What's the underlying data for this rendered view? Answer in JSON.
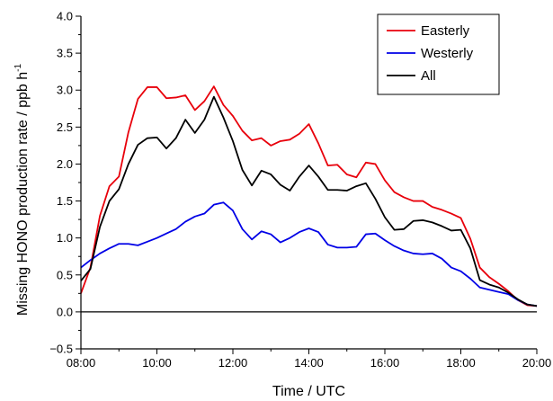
{
  "chart_data": {
    "type": "line",
    "xlabel": "Time / UTC",
    "ylabel": "Missing HONO production rate / ppb h",
    "ylabel_sup": "-1",
    "xlim": [
      "08:00",
      "20:00"
    ],
    "ylim": [
      -0.5,
      4.0
    ],
    "x_ticks": [
      "08:00",
      "10:00",
      "12:00",
      "14:00",
      "16:00",
      "18:00",
      "20:00"
    ],
    "y_ticks": [
      "−0.5",
      "0.0",
      "0.5",
      "1.0",
      "1.5",
      "2.0",
      "2.5",
      "3.0",
      "3.5",
      "4.0"
    ],
    "y_tick_values": [
      -0.5,
      0.0,
      0.5,
      1.0,
      1.5,
      2.0,
      2.5,
      3.0,
      3.5,
      4.0
    ],
    "grid": false,
    "zero_line": true,
    "legend_position": "top-right",
    "x": [
      "08:00",
      "08:15",
      "08:30",
      "08:45",
      "09:00",
      "09:15",
      "09:30",
      "09:45",
      "10:00",
      "10:15",
      "10:30",
      "10:45",
      "11:00",
      "11:15",
      "11:30",
      "11:45",
      "12:00",
      "12:15",
      "12:30",
      "12:45",
      "13:00",
      "13:15",
      "13:30",
      "13:45",
      "14:00",
      "14:15",
      "14:30",
      "14:45",
      "15:00",
      "15:15",
      "15:30",
      "15:45",
      "16:00",
      "16:15",
      "16:30",
      "16:45",
      "17:00",
      "17:15",
      "17:30",
      "17:45",
      "18:00",
      "18:15",
      "18:30",
      "18:45",
      "19:00",
      "19:15",
      "19:30",
      "19:45",
      "20:00"
    ],
    "series": [
      {
        "name": "Easterly",
        "color": "#e8000b",
        "values": [
          0.25,
          0.6,
          1.3,
          1.7,
          1.83,
          2.43,
          2.88,
          3.04,
          3.04,
          2.89,
          2.9,
          2.93,
          2.73,
          2.85,
          3.05,
          2.8,
          2.65,
          2.45,
          2.32,
          2.35,
          2.25,
          2.31,
          2.33,
          2.41,
          2.54,
          2.28,
          1.98,
          1.99,
          1.86,
          1.82,
          2.02,
          2.0,
          1.78,
          1.62,
          1.55,
          1.5,
          1.5,
          1.42,
          1.38,
          1.33,
          1.27,
          0.99,
          0.6,
          0.47,
          0.38,
          0.28,
          0.16,
          0.09,
          0.08
        ]
      },
      {
        "name": "Westerly",
        "color": "#0000e6",
        "values": [
          0.6,
          0.7,
          0.79,
          0.86,
          0.92,
          0.92,
          0.9,
          0.95,
          1.0,
          1.06,
          1.12,
          1.22,
          1.29,
          1.33,
          1.45,
          1.48,
          1.37,
          1.12,
          0.98,
          1.09,
          1.05,
          0.94,
          1.0,
          1.08,
          1.13,
          1.08,
          0.91,
          0.87,
          0.87,
          0.88,
          1.05,
          1.06,
          0.97,
          0.89,
          0.83,
          0.79,
          0.78,
          0.79,
          0.72,
          0.6,
          0.55,
          0.45,
          0.33,
          0.3,
          0.27,
          0.24,
          0.16,
          0.1,
          0.08
        ]
      },
      {
        "name": "All",
        "color": "#000000",
        "values": [
          0.42,
          0.58,
          1.15,
          1.5,
          1.66,
          2.0,
          2.26,
          2.35,
          2.36,
          2.21,
          2.35,
          2.6,
          2.42,
          2.6,
          2.91,
          2.63,
          2.31,
          1.92,
          1.71,
          1.91,
          1.86,
          1.72,
          1.64,
          1.83,
          1.98,
          1.83,
          1.65,
          1.65,
          1.64,
          1.7,
          1.74,
          1.53,
          1.28,
          1.11,
          1.12,
          1.23,
          1.24,
          1.21,
          1.16,
          1.1,
          1.11,
          0.86,
          0.43,
          0.37,
          0.33,
          0.26,
          0.17,
          0.1,
          0.08
        ]
      }
    ]
  }
}
